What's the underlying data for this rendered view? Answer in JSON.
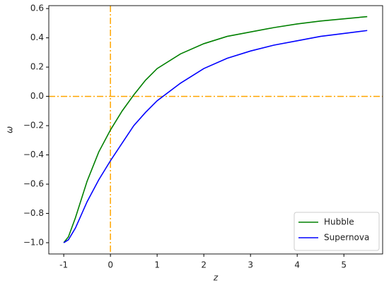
{
  "chart_data": {
    "type": "line",
    "xlabel": "z",
    "ylabel": "ω",
    "x": [
      -1,
      -0.9,
      -0.75,
      -0.5,
      -0.25,
      0,
      0.25,
      0.5,
      0.75,
      1,
      1.5,
      2,
      2.5,
      3,
      3.5,
      4,
      4.5,
      5,
      5.5
    ],
    "series": [
      {
        "name": "Hubble",
        "color": "#008000",
        "values": [
          -1,
          -0.96,
          -0.83,
          -0.58,
          -0.38,
          -0.23,
          -0.1,
          0.01,
          0.11,
          0.19,
          0.29,
          0.36,
          0.41,
          0.44,
          0.47,
          0.495,
          0.515,
          0.53,
          0.545
        ]
      },
      {
        "name": "Supernova",
        "color": "#0000ff",
        "values": [
          -1,
          -0.98,
          -0.9,
          -0.72,
          -0.57,
          -0.44,
          -0.32,
          -0.2,
          -0.11,
          -0.03,
          0.09,
          0.19,
          0.26,
          0.31,
          0.35,
          0.38,
          0.41,
          0.43,
          0.45
        ]
      }
    ],
    "xlim": [
      -1.32,
      5.83
    ],
    "ylim": [
      -1.077,
      0.62
    ],
    "xticks": [
      -1,
      0,
      1,
      2,
      3,
      4,
      5
    ],
    "yticks": [
      {
        "value": -1,
        "label": "−1.0"
      },
      {
        "value": -0.8,
        "label": "−0.8"
      },
      {
        "value": -0.6,
        "label": "−0.6"
      },
      {
        "value": -0.4,
        "label": "−0.4"
      },
      {
        "value": -0.2,
        "label": "−0.2"
      },
      {
        "value": 0,
        "label": "0.0"
      },
      {
        "value": 0.2,
        "label": "0.2"
      },
      {
        "value": 0.4,
        "label": "0.4"
      },
      {
        "value": 0.6,
        "label": "0.6"
      }
    ],
    "hlines": [
      0
    ],
    "vlines": [
      0
    ],
    "reference_color": "#ffa500",
    "legend": "lower right"
  }
}
